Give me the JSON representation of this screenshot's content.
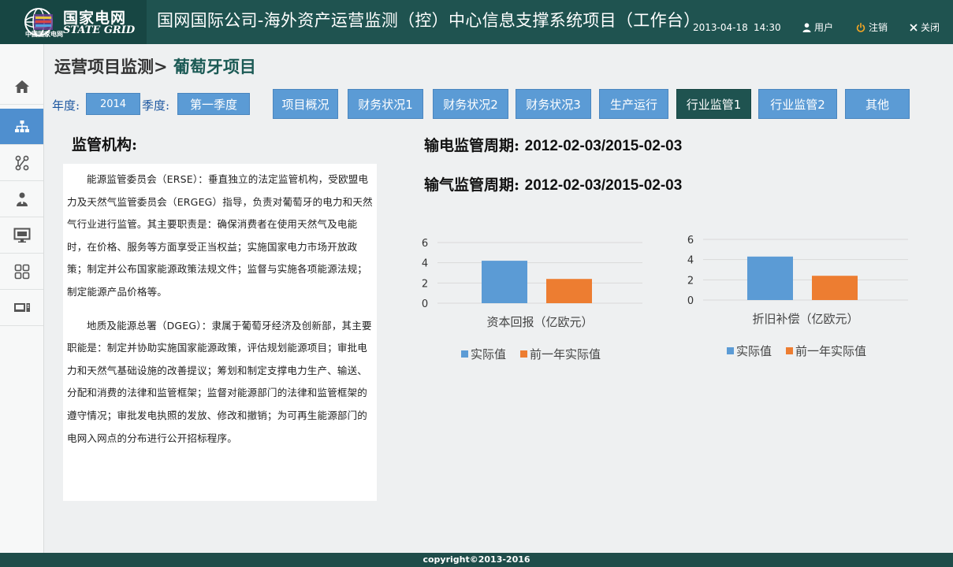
{
  "header": {
    "logo_cn": "国家电网",
    "logo_en": "STATE GRID",
    "logo_small": "中国国家电网",
    "system_title": "国网国际公司-海外资产运营监测（控）中心信息支撑系统项目（工作台）",
    "date": "2013-04-18",
    "time": "14:30",
    "user_label": "用户",
    "logout_label": "注销",
    "close_label": "关闭"
  },
  "sidebar": {
    "items": [
      {
        "name": "home",
        "icon": "home-icon"
      },
      {
        "name": "org",
        "icon": "org-chart-icon"
      },
      {
        "name": "flow",
        "icon": "flow-icon"
      },
      {
        "name": "users",
        "icon": "users-icon"
      },
      {
        "name": "monitor",
        "icon": "monitor-icon"
      },
      {
        "name": "apps",
        "icon": "grid-icon"
      },
      {
        "name": "device",
        "icon": "device-icon"
      }
    ],
    "active_index": 1
  },
  "breadcrumb": {
    "parent": "运营项目监测>",
    "current": "葡萄牙项目"
  },
  "filters": {
    "year_label": "年度:",
    "year_value": "2014",
    "quarter_label": "季度:",
    "quarter_value": "第一季度"
  },
  "tabs": [
    {
      "label": "项目概况",
      "active": false
    },
    {
      "label": "财务状况1",
      "active": false
    },
    {
      "label": "财务状况2",
      "active": false
    },
    {
      "label": "财务状况3",
      "active": false
    },
    {
      "label": "生产运行",
      "active": false
    },
    {
      "label": "行业监管1",
      "active": true
    },
    {
      "label": "行业监管2",
      "active": false
    },
    {
      "label": "其他",
      "active": false
    }
  ],
  "regulator": {
    "title": "监管机构:",
    "paragraphs": [
      "能源监管委员会（ERSE）：垂直独立的法定监管机构，受欧盟电力及天然气监管委员会（ERGEG）指导，负责对葡萄牙的电力和天然气行业进行监管。其主要职责是：确保消费者在使用天然气及电能时，在价格、服务等方面享受正当权益；实施国家电力市场开放政策；制定并公布国家能源政策法规文件；监督与实施各项能源法规；制定能源产品价格等。",
      "地质及能源总署（DGEG）：隶属于葡萄牙经济及创新部，其主要职能是：制定并协助实施国家能源政策，评估规划能源项目；审批电力和天然气基础设施的改善提议；筹划和制定支撑电力生产、输送、分配和消费的法律和监管框架；监督对能源部门的法律和监管框架的遵守情况；审批发电执照的发放、修改和撤销；为可再生能源部门的电网入网点的分布进行公开招标程序。"
    ]
  },
  "periods": {
    "power_label": "输电监管周期:",
    "power_value": "2012-02-03/2015-02-03",
    "gas_label": "输气监管周期:",
    "gas_value": "2012-02-03/2015-02-03"
  },
  "colors": {
    "actual": "#5b9bd5",
    "previous": "#ed7d31",
    "header_bg": "#1f5350",
    "active_tab": "#1f5350",
    "tab_bg": "#5b9bd5"
  },
  "chart_data": [
    {
      "type": "bar",
      "title": "",
      "xlabel": "资本回报（亿欧元）",
      "ylabel": "",
      "ylim": [
        0,
        6
      ],
      "yticks": [
        "0",
        "2",
        "4",
        "6"
      ],
      "grid": true,
      "legend": "bottom",
      "categories": [
        "资本回报（亿欧元）"
      ],
      "series": [
        {
          "name": "实际值",
          "values": [
            4.2
          ]
        },
        {
          "name": "前一年实际值",
          "values": [
            2.4
          ]
        }
      ]
    },
    {
      "type": "bar",
      "title": "",
      "xlabel": "折旧补偿（亿欧元）",
      "ylabel": "",
      "ylim": [
        0,
        6
      ],
      "yticks": [
        "0",
        "2",
        "4",
        "6"
      ],
      "grid": true,
      "legend": "bottom",
      "categories": [
        "折旧补偿（亿欧元）"
      ],
      "series": [
        {
          "name": "实际值",
          "values": [
            4.3
          ]
        },
        {
          "name": "前一年实际值",
          "values": [
            2.4
          ]
        }
      ]
    }
  ],
  "footer": {
    "copyright": "copyright©2013-2016"
  }
}
